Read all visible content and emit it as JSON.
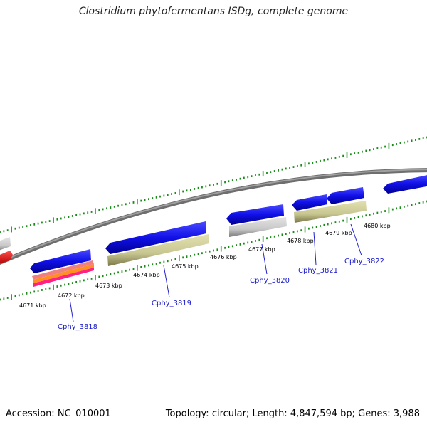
{
  "title": "Clostridium phytofermentans ISDg, complete genome",
  "footer": {
    "accession_label": "Accession:",
    "accession": "NC_010001",
    "topology_label": "Topology:",
    "topology": "circular;",
    "length_label": "Length:",
    "length": "4,847,594 bp;",
    "genes_label": "Genes:",
    "genes": "3,988"
  },
  "map": {
    "kbp_labels": [
      "4671 kbp",
      "4672 kbp",
      "4673 kbp",
      "4674 kbp",
      "4675 kbp",
      "4676 kbp",
      "4677 kbp",
      "4678 kbp",
      "4679 kbp",
      "4680 kbp"
    ],
    "gene_labels": [
      "Cphy_3818",
      "Cphy_3819",
      "Cphy_3820",
      "Cphy_3821",
      "Cphy_3822"
    ],
    "colors": {
      "cds": "#1010e8",
      "cds_dark": "#0000a0",
      "gene_track": "#c8c690",
      "rna": "#ff0000",
      "grey_feature": "#c8c8c8",
      "backbone": "#8c8c8c",
      "ticks": "#1a8c1a",
      "label": "#1a1acc"
    }
  }
}
